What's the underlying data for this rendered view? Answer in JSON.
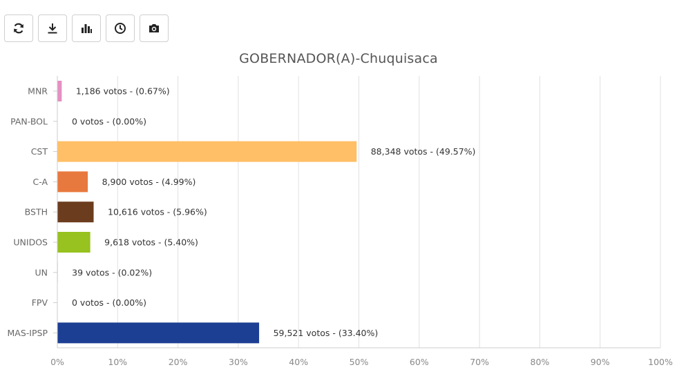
{
  "toolbar": {
    "buttons": [
      {
        "icon": "refresh-icon"
      },
      {
        "icon": "download-icon"
      },
      {
        "icon": "bar-chart-icon"
      },
      {
        "icon": "clock-icon"
      },
      {
        "icon": "camera-icon"
      }
    ]
  },
  "chart_data": {
    "type": "bar",
    "orientation": "horizontal",
    "title": "GOBERNADOR(A)-Chuquisaca",
    "categories": [
      "MNR",
      "PAN-BOL",
      "CST",
      "C-A",
      "BSTH",
      "UNIDOS",
      "UN",
      "FPV",
      "MAS-IPSP"
    ],
    "votes": [
      1186,
      0,
      88348,
      8900,
      10616,
      9618,
      39,
      0,
      59521
    ],
    "values": [
      0.67,
      0.0,
      49.57,
      4.99,
      5.96,
      5.4,
      0.02,
      0.0,
      33.4
    ],
    "labels": [
      "1,186 votos - (0.67%)",
      "0 votos - (0.00%)",
      "88,348 votos - (49.57%)",
      "8,900 votos - (4.99%)",
      "10,616 votos - (5.96%)",
      "9,618 votos - (5.40%)",
      "39 votos - (0.02%)",
      "0 votos - (0.00%)",
      "59,521 votos - (33.40%)"
    ],
    "colors": [
      "#e58fc2",
      "#bbbbbb",
      "#ffbf66",
      "#e8793e",
      "#6b3d1e",
      "#97c21f",
      "#bbbbbb",
      "#bbbbbb",
      "#1c3f94"
    ],
    "xlim": [
      0,
      100
    ],
    "xticks": [
      "0%",
      "10%",
      "20%",
      "30%",
      "40%",
      "50%",
      "60%",
      "70%",
      "80%",
      "90%",
      "100%"
    ],
    "grid": true
  }
}
